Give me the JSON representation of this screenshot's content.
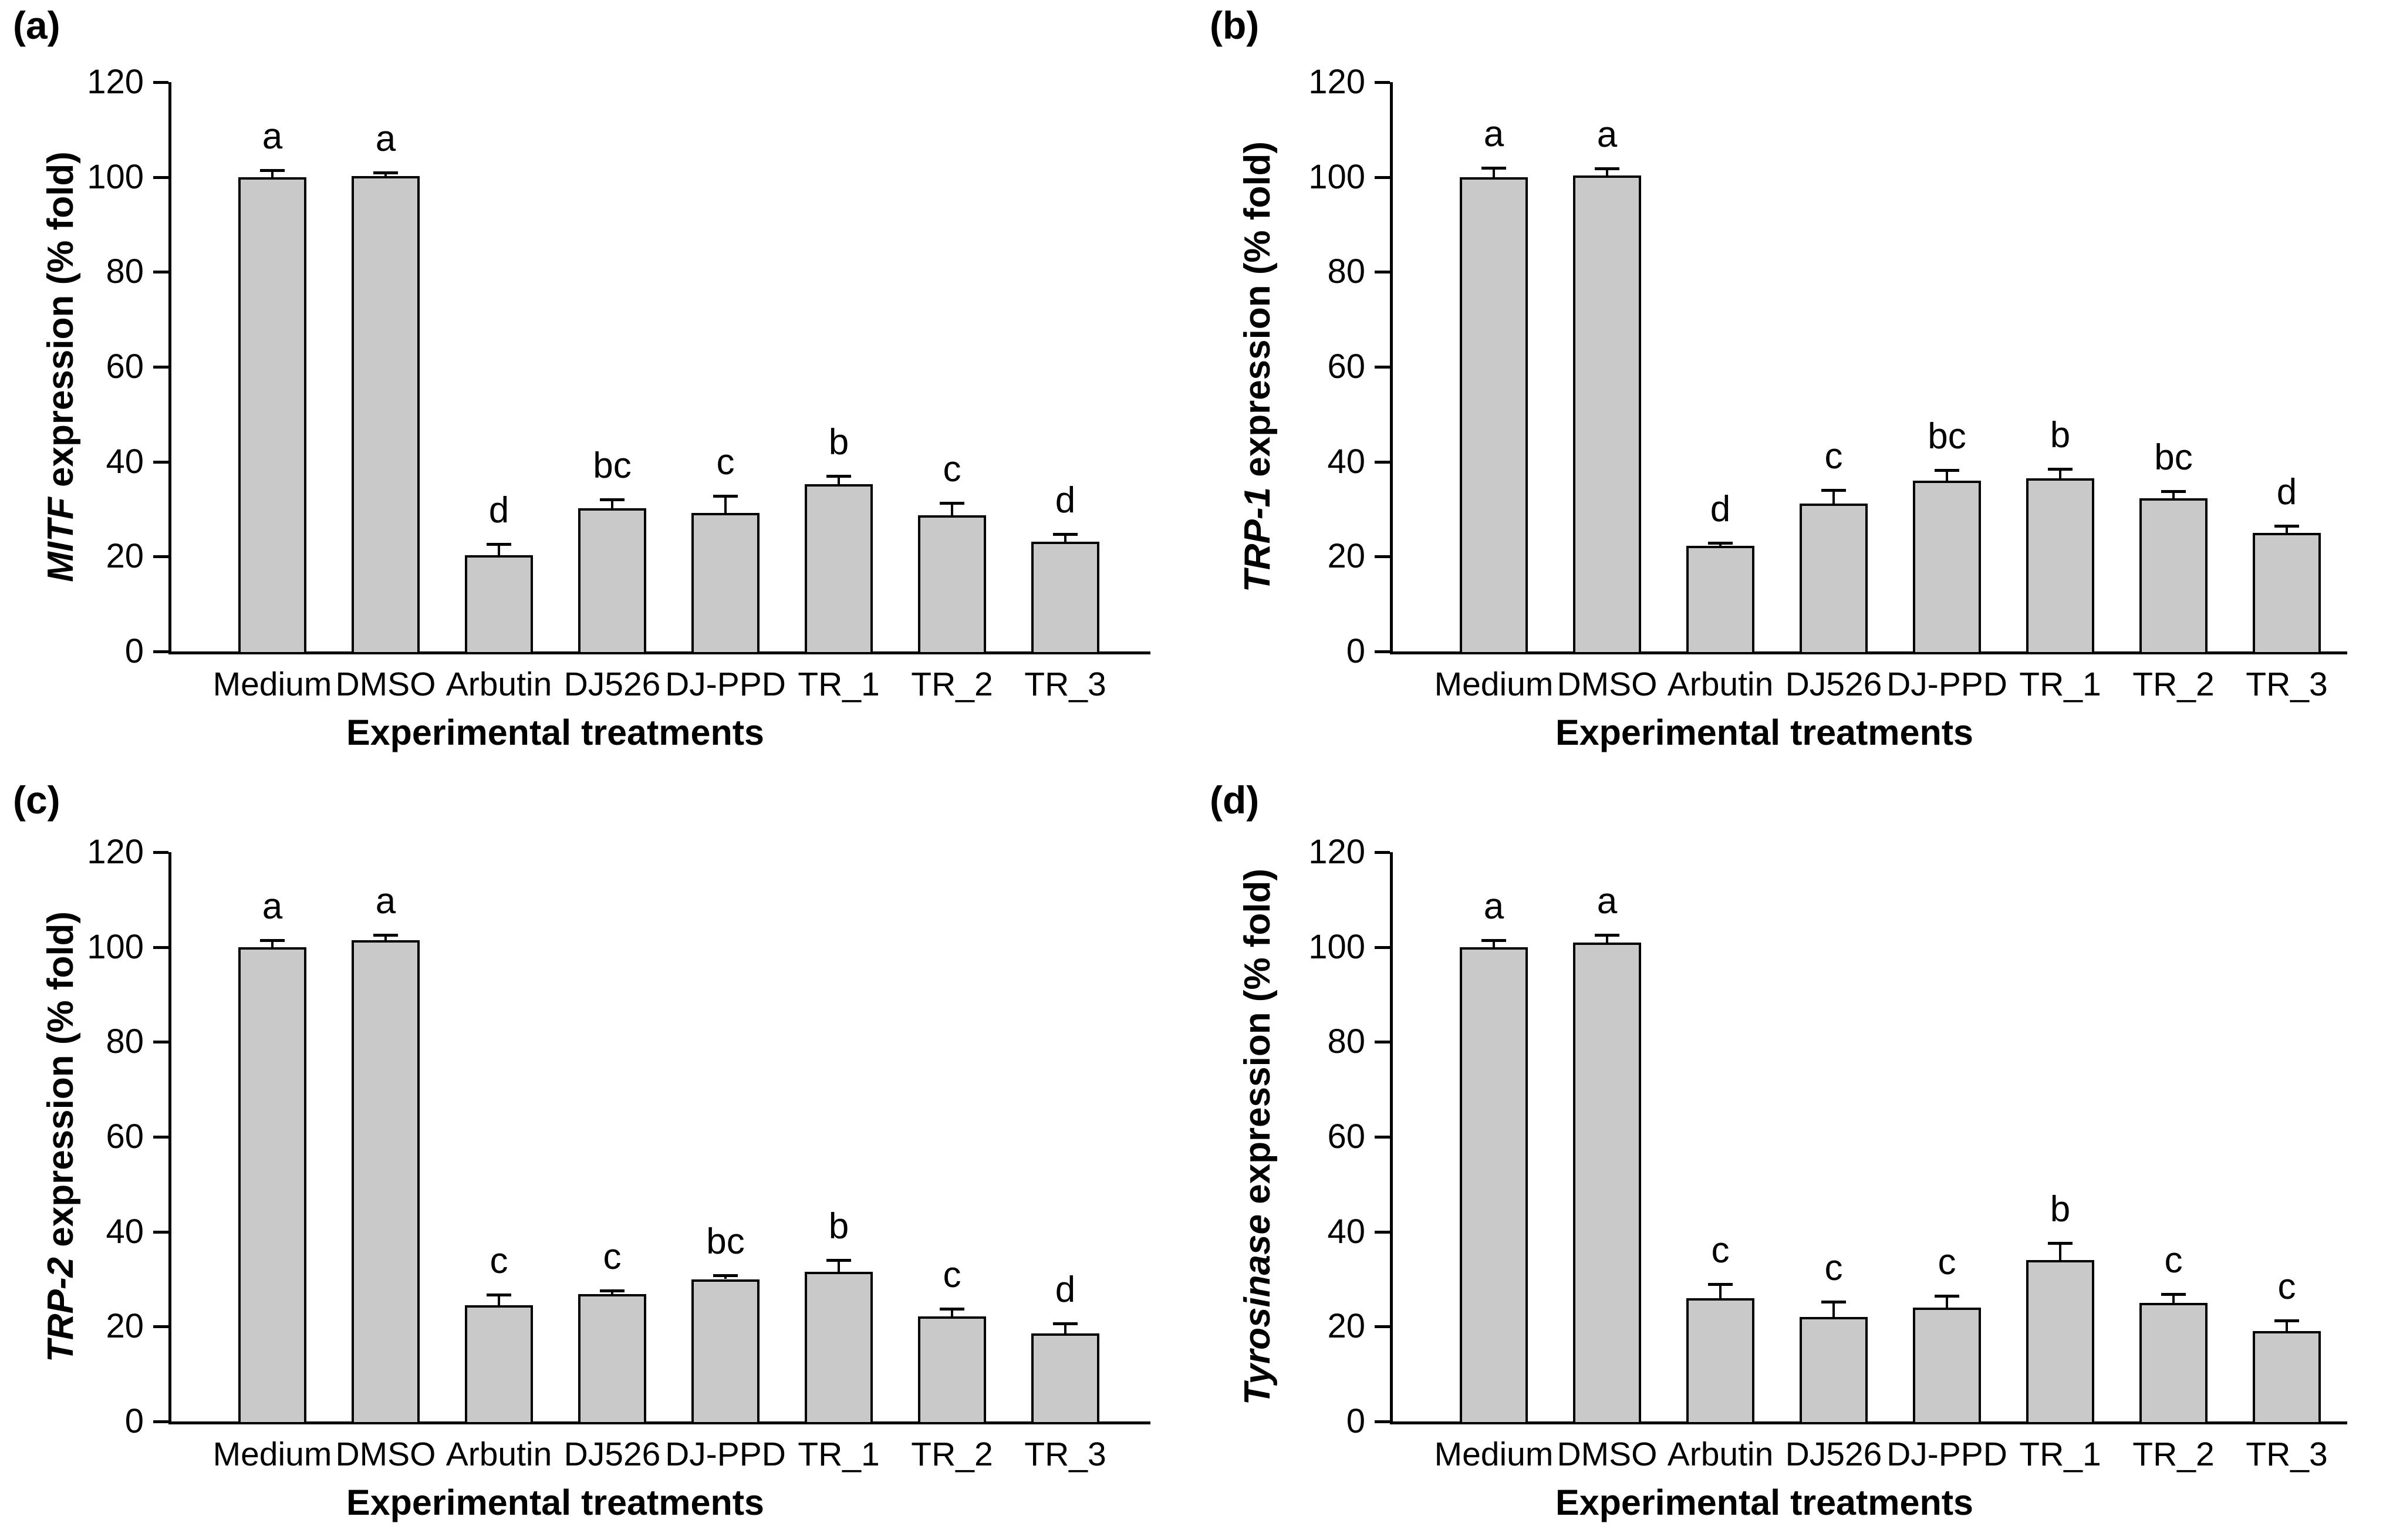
{
  "figure_title": "",
  "styles": {
    "bar_fill": "#c9c9c9",
    "bar_border": "#000000",
    "background": "#ffffff",
    "text_color": "#000000"
  },
  "chart_data": [
    {
      "type": "bar",
      "panel_label": "(a)",
      "ylabel_gene": "MITF",
      "ylabel_rest": " expression (% fold)",
      "ylabel": "MITF expression (% fold)",
      "xlabel": "Experimental treatments",
      "categories": [
        "Medium",
        "DMSO",
        "Arbutin",
        "DJ526",
        "DJ-PPD",
        "TR_1",
        "TR_2",
        "TR_3"
      ],
      "values": [
        100.0,
        100.2,
        20.3,
        30.2,
        29.2,
        35.2,
        28.7,
        23.1
      ],
      "errors": [
        1.5,
        0.8,
        2.4,
        1.8,
        3.6,
        1.8,
        2.6,
        1.6
      ],
      "letters": [
        "a",
        "a",
        "d",
        "bc",
        "c",
        "b",
        "c",
        "d"
      ],
      "ylim": [
        0,
        120
      ],
      "yticks": [
        0,
        20,
        40,
        60,
        80,
        100,
        120
      ],
      "grid": false,
      "legend": null
    },
    {
      "type": "bar",
      "panel_label": "(b)",
      "ylabel_gene": "TRP-1",
      "ylabel_rest": " expression (% fold)",
      "ylabel": "TRP-1 expression (% fold)",
      "xlabel": "Experimental treatments",
      "categories": [
        "Medium",
        "DMSO",
        "Arbutin",
        "DJ526",
        "DJ-PPD",
        "TR_1",
        "TR_2",
        "TR_3"
      ],
      "values": [
        100.0,
        100.3,
        22.3,
        31.2,
        36.0,
        36.5,
        32.3,
        25.0
      ],
      "errors": [
        2.0,
        1.5,
        0.6,
        2.8,
        2.2,
        2.0,
        1.5,
        1.5
      ],
      "letters": [
        "a",
        "a",
        "d",
        "c",
        "bc",
        "b",
        "bc",
        "d"
      ],
      "ylim": [
        0,
        120
      ],
      "yticks": [
        0,
        20,
        40,
        60,
        80,
        100,
        120
      ],
      "grid": false,
      "legend": null
    },
    {
      "type": "bar",
      "panel_label": "(c)",
      "ylabel_gene": "TRP-2",
      "ylabel_rest": " expression (% fold)",
      "ylabel": "TRP-2 expression (% fold)",
      "xlabel": "Experimental treatments",
      "categories": [
        "Medium",
        "DMSO",
        "Arbutin",
        "DJ526",
        "DJ-PPD",
        "TR_1",
        "TR_2",
        "TR_3"
      ],
      "values": [
        100.0,
        101.5,
        24.5,
        26.8,
        30.0,
        31.5,
        22.2,
        18.5
      ],
      "errors": [
        1.5,
        1.0,
        2.2,
        0.8,
        0.8,
        2.5,
        1.5,
        2.2
      ],
      "letters": [
        "a",
        "a",
        "c",
        "c",
        "bc",
        "b",
        "c",
        "d"
      ],
      "ylim": [
        0,
        120
      ],
      "yticks": [
        0,
        20,
        40,
        60,
        80,
        100,
        120
      ],
      "grid": false,
      "legend": null
    },
    {
      "type": "bar",
      "panel_label": "(d)",
      "ylabel_gene": "Tyrosinase",
      "ylabel_rest": " expression (% fold)",
      "ylabel": "Tyrosinase expression (% fold)",
      "xlabel": "Experimental treatments",
      "categories": [
        "Medium",
        "DMSO",
        "Arbutin",
        "DJ526",
        "DJ-PPD",
        "TR_1",
        "TR_2",
        "TR_3"
      ],
      "values": [
        100.0,
        101.0,
        26.0,
        22.0,
        24.0,
        34.0,
        25.0,
        19.0
      ],
      "errors": [
        1.5,
        1.5,
        3.0,
        3.2,
        2.5,
        3.6,
        1.8,
        2.3
      ],
      "letters": [
        "a",
        "a",
        "c",
        "c",
        "c",
        "b",
        "c",
        "c"
      ],
      "ylim": [
        0,
        120
      ],
      "yticks": [
        0,
        20,
        40,
        60,
        80,
        100,
        120
      ],
      "grid": false,
      "legend": null
    }
  ]
}
